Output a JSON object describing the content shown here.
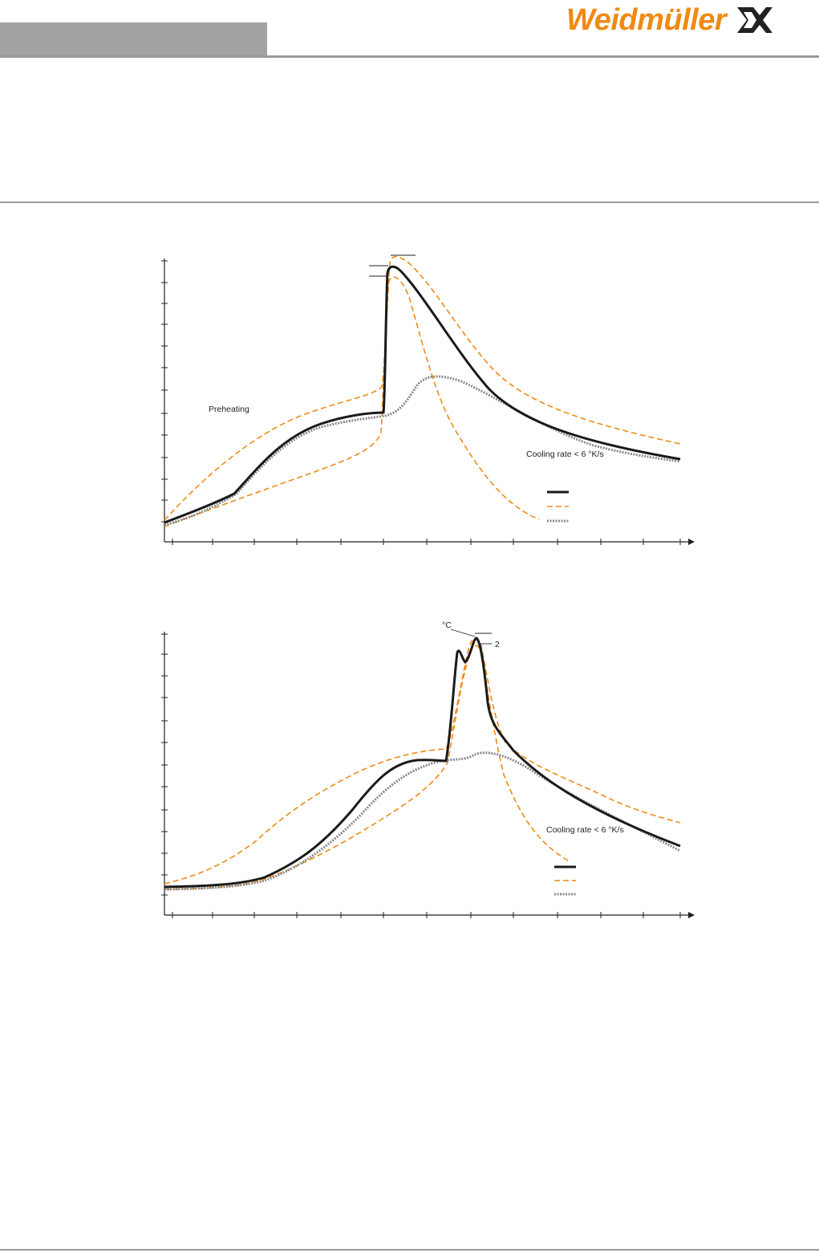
{
  "header": {
    "logo_text": "Weidmüller",
    "logo_mark": "weidmuller-logo-mark-icon"
  },
  "colors": {
    "accent": "#ef8a14",
    "header_gray": "#a3a3a3",
    "solid_line": "#1a1a1a",
    "dotted_line": "#8a8a8a"
  },
  "chart_data": [
    {
      "type": "line",
      "title": "",
      "xlabel": "",
      "ylabel": "",
      "grid": false,
      "ticks": {
        "x_count": 12,
        "y_count": 13
      },
      "annotations": {
        "preheating": "Preheating",
        "cooling_rate": "Cooling rate < 6 °K/s"
      },
      "legend": {
        "placement": "bottom-right",
        "entries": [
          {
            "style": "solid",
            "color": "#1a1a1a"
          },
          {
            "style": "dashed",
            "color": "#ef8a14"
          },
          {
            "style": "dotted",
            "color": "#8a8a8a"
          }
        ]
      }
    },
    {
      "type": "line",
      "title": "",
      "xlabel": "",
      "ylabel": "",
      "grid": false,
      "ticks": {
        "x_count": 12,
        "y_count": 13
      },
      "annotations": {
        "peak_unit": "°C",
        "peak_label": "2",
        "cooling_rate": "Cooling rate < 6 °K/s"
      },
      "legend": {
        "placement": "bottom-right",
        "entries": [
          {
            "style": "solid",
            "color": "#1a1a1a"
          },
          {
            "style": "dashed",
            "color": "#ef8a14"
          },
          {
            "style": "dotted",
            "color": "#8a8a8a"
          }
        ]
      }
    }
  ]
}
